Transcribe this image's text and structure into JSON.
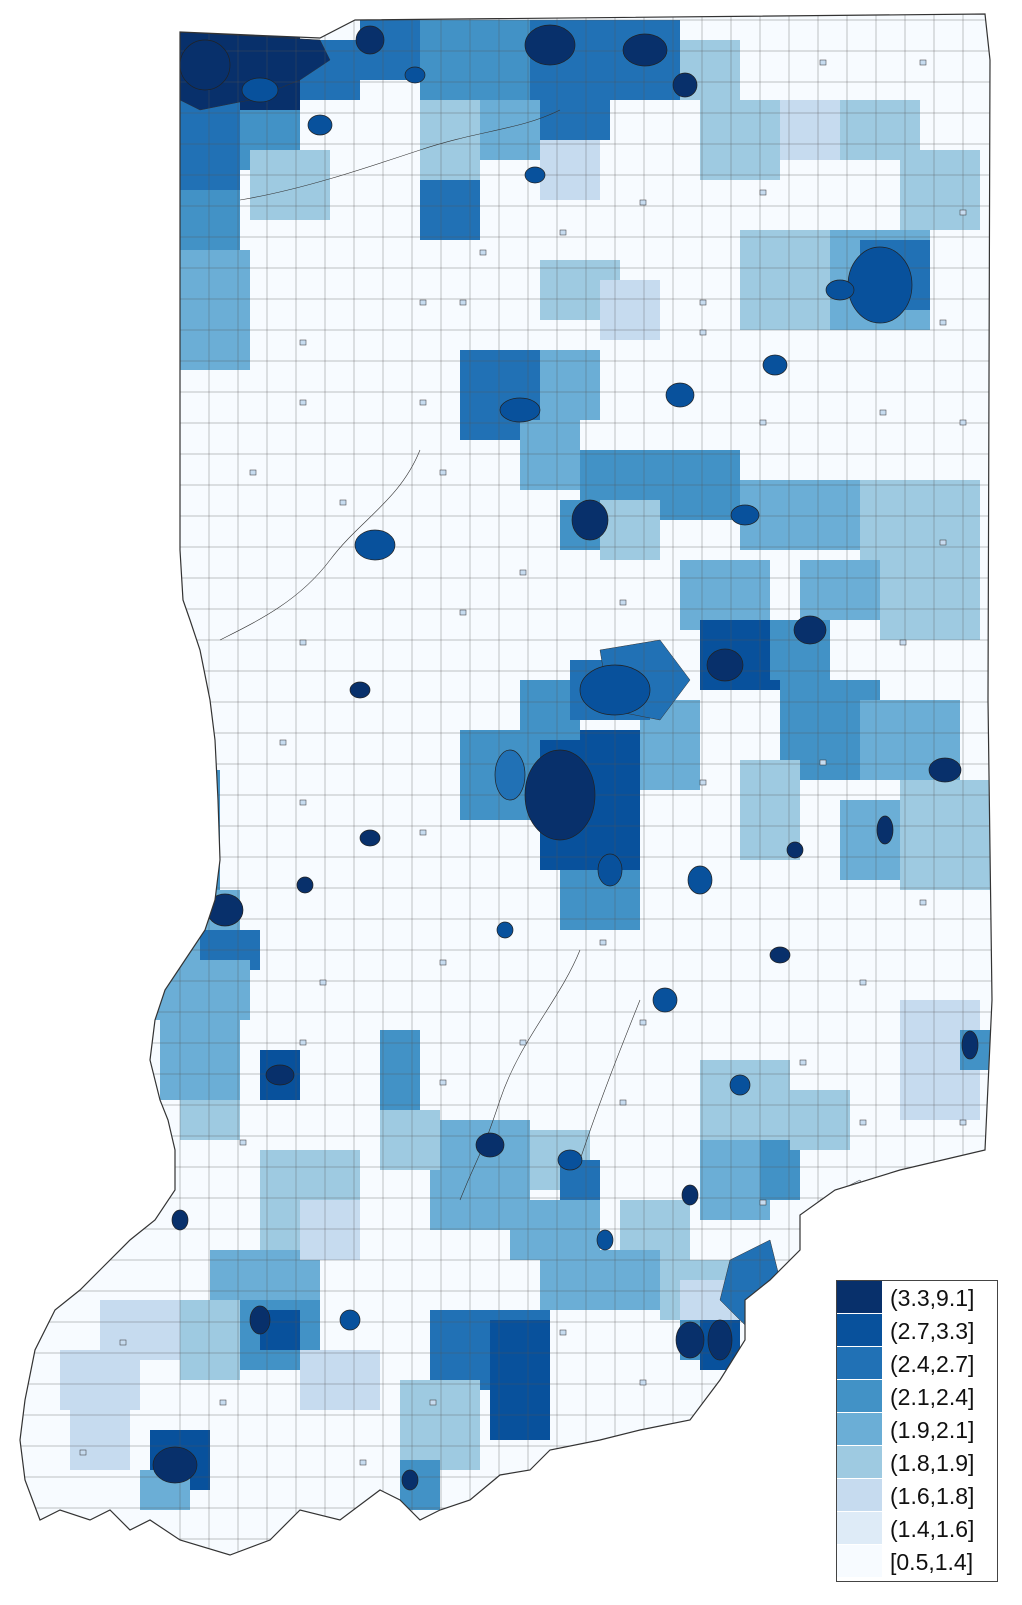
{
  "map": {
    "region": "Indiana",
    "palette": [
      "#f7fbff",
      "#deebf7",
      "#c6dbef",
      "#9ecae1",
      "#6baed6",
      "#4292c6",
      "#2171b5",
      "#08519c",
      "#08306b"
    ],
    "stroke_color": "#333333"
  },
  "legend": {
    "items": [
      {
        "label": "(3.3,9.1]",
        "color": "#08306b"
      },
      {
        "label": "(2.7,3.3]",
        "color": "#08519c"
      },
      {
        "label": "(2.4,2.7]",
        "color": "#2171b5"
      },
      {
        "label": "(2.1,2.4]",
        "color": "#4292c6"
      },
      {
        "label": "(1.9,2.1]",
        "color": "#6baed6"
      },
      {
        "label": "(1.8,1.9]",
        "color": "#9ecae1"
      },
      {
        "label": "(1.6,1.8]",
        "color": "#c6dbef"
      },
      {
        "label": "(1.4,1.6]",
        "color": "#deebf7"
      },
      {
        "label": "[0.5,1.4]",
        "color": "#f7fbff"
      }
    ]
  }
}
